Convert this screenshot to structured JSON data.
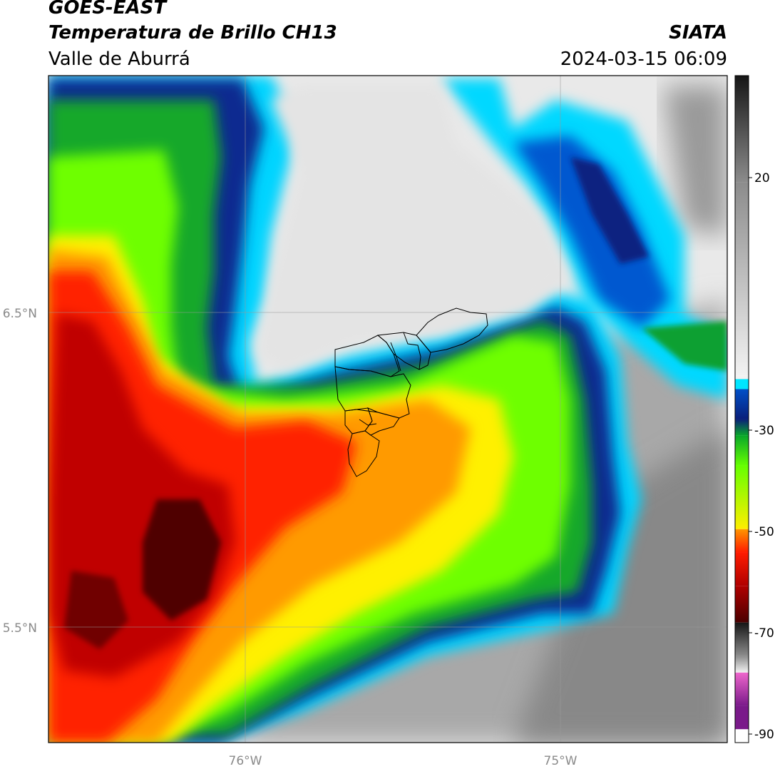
{
  "header": {
    "satellite": "GOES-EAST",
    "product": "Temperatura de Brillo CH13",
    "brand": "SIATA",
    "region": "Valle de Aburrá",
    "timestamp": "2024-03-15 06:09"
  },
  "axes": {
    "lat_ticks": [
      {
        "value": 6.5,
        "label": "6.5°N"
      },
      {
        "value": 5.5,
        "label": "5.5°N"
      }
    ],
    "lon_ticks": [
      {
        "value": -76.0,
        "label": "76°W"
      },
      {
        "value": -75.0,
        "label": "75°W"
      }
    ],
    "lon_range": [
      -76.62,
      -74.45
    ],
    "lat_range": [
      5.13,
      7.25
    ],
    "grid": true
  },
  "colorbar": {
    "ticks": [
      {
        "value": 20,
        "label": "20"
      },
      {
        "value": -30,
        "label": "-30"
      },
      {
        "value": -50,
        "label": "-50"
      },
      {
        "value": -70,
        "label": "-70"
      },
      {
        "value": -90,
        "label": "-90"
      }
    ],
    "colors": {
      "warm_dark": "#161616",
      "warm_light": "#f2f2f2",
      "cyan": "#00e5ff",
      "blue": "#0050c8",
      "navy": "#0a1f7a",
      "green": "#0aa82a",
      "lime": "#66ff00",
      "yellow": "#ffee00",
      "orange": "#ff9600",
      "red": "#ff1c00",
      "darkred": "#b00000",
      "maroon": "#4a0000",
      "gray": "#8c8c8c",
      "pink": "#ee66cc",
      "purple": "#7a1a8a"
    }
  }
}
